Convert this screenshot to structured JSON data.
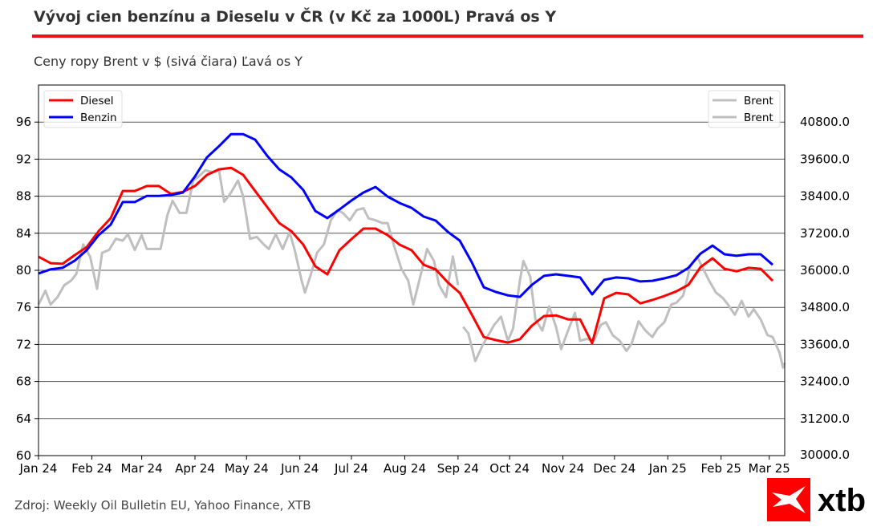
{
  "header": {
    "title": "Vývoj cien benzínu a Dieselu v ČR (v Kč za 1000L) Pravá os Y",
    "subtitle": "Ceny ropy Brent v $ (sivá čiara) Ľavá os Y"
  },
  "footer": {
    "source": "Zdroj: Weekly Oil Bulletin EU, Yahoo Finance, XTB",
    "logo_text": "xtb"
  },
  "colors": {
    "diesel": "#ff0000",
    "benzin": "#0000ff",
    "brent": "#bfbfbf",
    "accent": "#e8141a"
  },
  "chart_data": {
    "type": "line",
    "grid": true,
    "legend_left": {
      "placement": "top-left",
      "entries": [
        "Diesel",
        "Benzin"
      ]
    },
    "legend_right": {
      "placement": "top-right",
      "entries": [
        "Brent",
        "Brent"
      ]
    },
    "xlim": [
      "2024-01-01",
      "2025-03-10"
    ],
    "x_ticks": [
      "Jan 24",
      "Feb 24",
      "Mar 24",
      "Apr 24",
      "May 24",
      "Jun 24",
      "Jul 24",
      "Aug 24",
      "Sep 24",
      "Oct 24",
      "Nov 24",
      "Dec 24",
      "Jan 25",
      "Feb 25",
      "Mar 25"
    ],
    "x_tick_dates": [
      "2024-01-01",
      "2024-02-01",
      "2024-03-01",
      "2024-04-01",
      "2024-05-01",
      "2024-06-01",
      "2024-07-01",
      "2024-08-01",
      "2024-09-01",
      "2024-10-01",
      "2024-11-01",
      "2024-12-01",
      "2025-01-01",
      "2025-02-01",
      "2025-03-01"
    ],
    "left_axis": {
      "ylim": [
        60,
        100
      ],
      "ticks": [
        "60",
        "64",
        "68",
        "72",
        "76",
        "80",
        "84",
        "88",
        "92",
        "96"
      ]
    },
    "right_axis": {
      "ylim": [
        30000,
        42000
      ],
      "ticks": [
        "30000.0",
        "31200.0",
        "32400.0",
        "33600.0",
        "34800.0",
        "36000.0",
        "37200.0",
        "38400.0",
        "39600.0",
        "40800.0"
      ]
    },
    "weekly_dates": [
      "2024-01-01",
      "2024-01-08",
      "2024-01-15",
      "2024-01-22",
      "2024-01-29",
      "2024-02-05",
      "2024-02-12",
      "2024-02-19",
      "2024-02-26",
      "2024-03-04",
      "2024-03-11",
      "2024-03-18",
      "2024-03-25",
      "2024-04-01",
      "2024-04-08",
      "2024-04-15",
      "2024-04-22",
      "2024-04-29",
      "2024-05-06",
      "2024-05-13",
      "2024-05-20",
      "2024-05-27",
      "2024-06-03",
      "2024-06-10",
      "2024-06-17",
      "2024-06-24",
      "2024-07-01",
      "2024-07-08",
      "2024-07-15",
      "2024-07-22",
      "2024-07-29",
      "2024-08-05",
      "2024-08-12",
      "2024-08-19",
      "2024-08-26",
      "2024-09-02",
      "2024-09-09",
      "2024-09-16",
      "2024-09-23",
      "2024-09-30",
      "2024-10-07",
      "2024-10-14",
      "2024-10-21",
      "2024-10-28",
      "2024-11-04",
      "2024-11-11",
      "2024-11-18",
      "2024-11-25",
      "2024-12-02",
      "2024-12-09",
      "2024-12-16",
      "2024-12-23",
      "2024-12-30",
      "2025-01-06",
      "2025-01-13",
      "2025-01-20",
      "2025-01-27",
      "2025-02-03",
      "2025-02-10",
      "2025-02-17",
      "2025-02-24",
      "2025-03-03"
    ],
    "series": [
      {
        "name": "Diesel",
        "axis": "right",
        "color": "#ff0000",
        "values": [
          36440,
          36230,
          36210,
          36490,
          36750,
          37270,
          37690,
          38570,
          38570,
          38730,
          38730,
          38470,
          38540,
          38730,
          39090,
          39270,
          39320,
          39090,
          38570,
          38050,
          37530,
          37270,
          36830,
          36130,
          35870,
          36650,
          37010,
          37350,
          37350,
          37140,
          36830,
          36650,
          36180,
          36030,
          35610,
          35270,
          34570,
          33840,
          33740,
          33660,
          33770,
          34210,
          34520,
          34540,
          34410,
          34410,
          33640,
          35090,
          35270,
          35220,
          34930,
          35040,
          35170,
          35320,
          35530,
          36100,
          36390,
          36050,
          35970,
          36080,
          36050,
          35660
        ]
      },
      {
        "name": "Benzin",
        "axis": "right",
        "color": "#0000ff",
        "values": [
          35900,
          36030,
          36080,
          36310,
          36650,
          37140,
          37480,
          38210,
          38210,
          38410,
          38410,
          38440,
          38520,
          39040,
          39660,
          40020,
          40410,
          40410,
          40230,
          39710,
          39270,
          39010,
          38600,
          37920,
          37690,
          37970,
          38260,
          38520,
          38700,
          38390,
          38180,
          38020,
          37740,
          37610,
          37250,
          36960,
          36260,
          35450,
          35300,
          35190,
          35140,
          35530,
          35820,
          35870,
          35820,
          35770,
          35220,
          35690,
          35770,
          35740,
          35640,
          35660,
          35740,
          35840,
          36080,
          36540,
          36800,
          36520,
          36470,
          36520,
          36520,
          36180
        ]
      },
      {
        "name": "Brent",
        "axis": "left",
        "color": "#bfbfbf",
        "x": [
          "2024-01-01",
          "2024-01-05",
          "2024-01-08",
          "2024-01-12",
          "2024-01-16",
          "2024-01-20",
          "2024-01-23",
          "2024-01-27",
          "2024-01-31",
          "2024-02-04",
          "2024-02-07",
          "2024-02-11",
          "2024-02-15",
          "2024-02-19",
          "2024-02-22",
          "2024-02-26",
          "2024-03-01",
          "2024-03-04",
          "2024-03-08",
          "2024-03-12",
          "2024-03-16",
          "2024-03-19",
          "2024-03-23",
          "2024-03-27",
          "2024-03-31",
          "2024-04-03",
          "2024-04-07",
          "2024-04-11",
          "2024-04-15",
          "2024-04-18",
          "2024-04-22",
          "2024-04-26",
          "2024-04-29",
          "2024-05-03",
          "2024-05-07",
          "2024-05-11",
          "2024-05-14",
          "2024-05-18",
          "2024-05-22",
          "2024-05-26",
          "2024-05-29",
          "2024-06-02",
          "2024-06-04",
          "2024-06-08",
          "2024-06-11",
          "2024-06-15",
          "2024-06-19",
          "2024-06-23",
          "2024-06-26",
          "2024-06-30",
          "2024-07-04",
          "2024-07-08",
          "2024-07-11",
          "2024-07-15",
          "2024-07-19",
          "2024-07-22",
          "2024-07-26",
          "2024-07-30",
          "2024-08-03",
          "2024-08-06",
          "2024-08-10",
          "2024-08-14",
          "2024-08-18",
          "2024-08-21",
          "2024-08-25",
          "2024-08-29",
          "2024-09-01"
        ],
        "values": [
          76.3,
          77.8,
          76.3,
          77.1,
          78.4,
          78.9,
          79.6,
          82.8,
          81.5,
          78.0,
          81.9,
          82.2,
          83.4,
          83.2,
          83.9,
          82.2,
          83.8,
          82.3,
          82.3,
          82.3,
          86.0,
          87.5,
          86.2,
          86.2,
          89.7,
          90.1,
          90.8,
          90.6,
          90.8,
          87.4,
          88.4,
          89.7,
          88.0,
          83.4,
          83.6,
          82.8,
          82.3,
          83.9,
          82.3,
          84.1,
          82.2,
          78.9,
          77.6,
          79.9,
          81.9,
          82.8,
          85.4,
          86.5,
          86.2,
          85.4,
          86.5,
          86.7,
          85.6,
          85.4,
          85.1,
          85.1,
          82.5,
          80.2,
          78.9,
          76.3,
          79.3,
          82.3,
          81.0,
          78.4,
          77.1,
          81.5,
          78.4
        ]
      },
      {
        "name": "Brent",
        "axis": "left",
        "color": "#bfbfbf",
        "x": [
          "2024-09-04",
          "2024-09-07",
          "2024-09-11",
          "2024-09-15",
          "2024-09-18",
          "2024-09-22",
          "2024-09-26",
          "2024-09-30",
          "2024-10-03",
          "2024-10-07",
          "2024-10-09",
          "2024-10-13",
          "2024-10-16",
          "2024-10-20",
          "2024-10-24",
          "2024-10-28",
          "2024-10-31",
          "2024-11-04",
          "2024-11-08",
          "2024-11-11",
          "2024-11-15",
          "2024-11-19",
          "2024-11-23",
          "2024-11-26",
          "2024-11-30",
          "2024-12-04",
          "2024-12-08",
          "2024-12-11",
          "2024-12-15",
          "2024-12-19",
          "2024-12-23",
          "2024-12-26",
          "2024-12-30",
          "2025-01-03",
          "2025-01-06",
          "2025-01-10",
          "2025-01-14",
          "2025-01-18",
          "2025-01-21",
          "2025-01-25",
          "2025-01-29",
          "2025-02-02",
          "2025-02-05",
          "2025-02-09",
          "2025-02-13",
          "2025-02-17",
          "2025-02-20",
          "2025-02-24",
          "2025-02-28",
          "2025-03-03",
          "2025-03-07",
          "2025-03-09",
          "2025-03-10"
        ],
        "values": [
          73.9,
          73.2,
          70.2,
          71.8,
          72.8,
          74.1,
          75.0,
          72.4,
          73.7,
          78.9,
          81.0,
          79.3,
          74.7,
          73.5,
          76.1,
          73.9,
          71.5,
          73.5,
          75.4,
          72.4,
          72.6,
          72.4,
          74.1,
          74.4,
          73.0,
          72.4,
          71.3,
          72.1,
          74.5,
          73.5,
          72.8,
          73.7,
          74.4,
          76.3,
          76.5,
          77.3,
          80.4,
          81.5,
          80.4,
          78.9,
          77.6,
          77.0,
          76.3,
          75.2,
          76.7,
          75.0,
          75.8,
          74.7,
          73.0,
          72.8,
          71.1,
          69.5,
          70.0
        ]
      }
    ]
  }
}
